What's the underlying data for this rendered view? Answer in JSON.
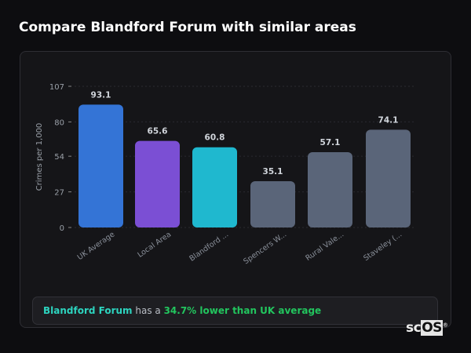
{
  "title": "Compare Blandford Forum with similar areas",
  "chart_data": {
    "type": "bar",
    "categories": [
      "UK Average",
      "Local Area",
      "Blandford ...",
      "Spencers W...",
      "Rural Vale...",
      "Staveley (..."
    ],
    "values": [
      93.1,
      65.6,
      60.8,
      35.1,
      57.1,
      74.1
    ],
    "colors": [
      "#3474d6",
      "#7b4fd4",
      "#1fb8cf",
      "#5a6579",
      "#5a6579",
      "#5a6579"
    ],
    "ylabel": "Crimes per 1,000",
    "yticks": [
      0,
      27,
      54,
      80,
      107
    ],
    "ylim": [
      0,
      107
    ],
    "grid": true
  },
  "summary": {
    "area": "Blandford Forum",
    "middle": " has a ",
    "comparison": "34.7% lower than UK average"
  },
  "logo": {
    "text_sc": "sc",
    "text_os": "OS",
    "reg": "®"
  }
}
